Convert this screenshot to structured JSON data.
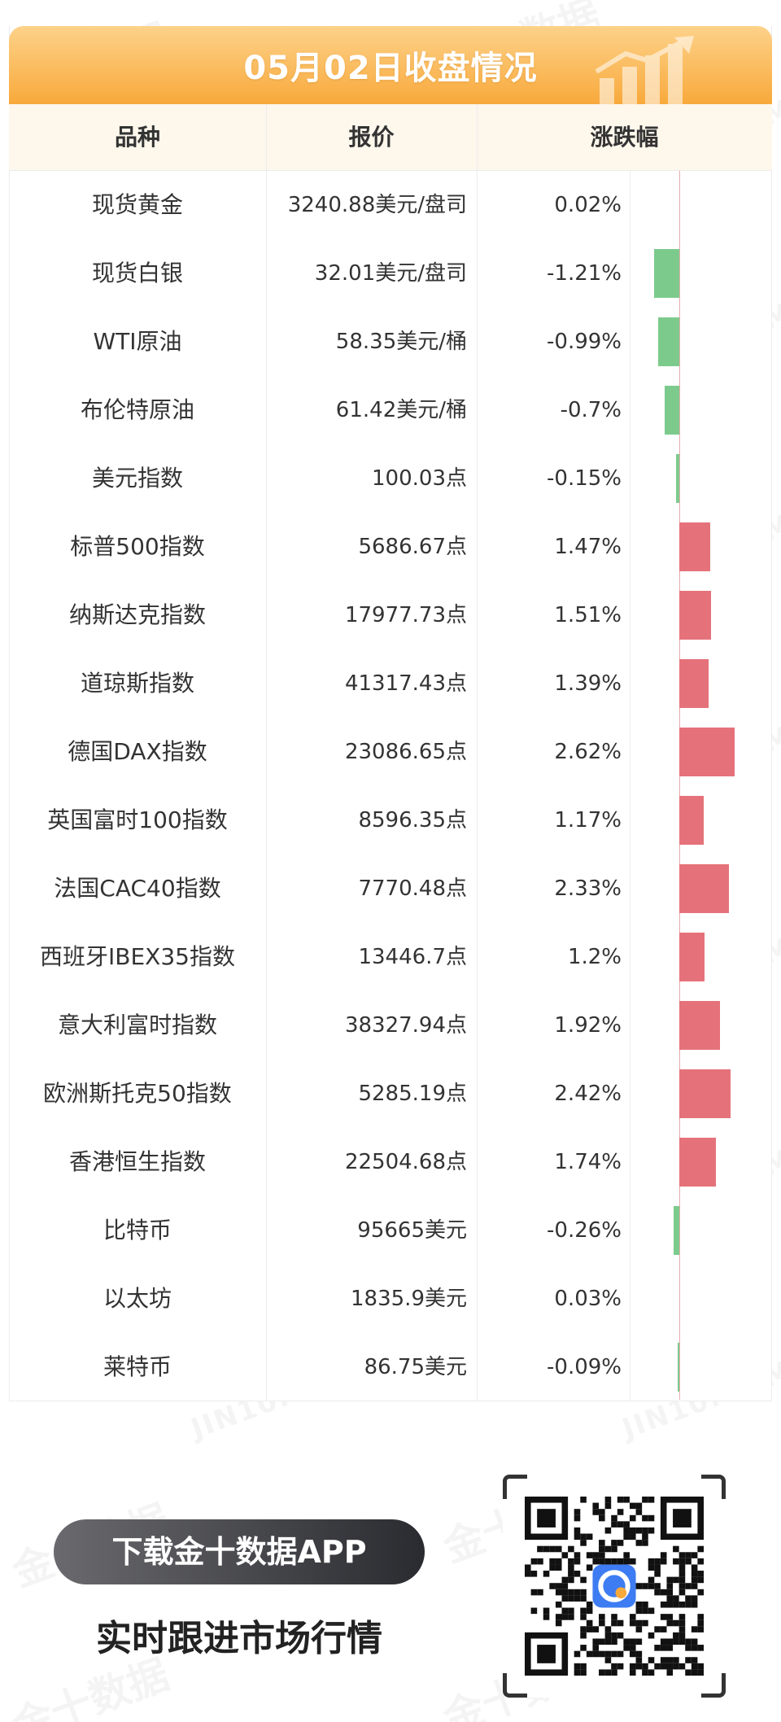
{
  "header": {
    "title": "05月02日收盘情况"
  },
  "table": {
    "columns": [
      "品种",
      "报价",
      "涨跌幅"
    ],
    "rows": [
      {
        "name": "现货黄金",
        "price": "3240.88美元/盘司",
        "change": "0.02%",
        "pct": 0.02
      },
      {
        "name": "现货白银",
        "price": "32.01美元/盘司",
        "change": "-1.21%",
        "pct": -1.21
      },
      {
        "name": "WTI原油",
        "price": "58.35美元/桶",
        "change": "-0.99%",
        "pct": -0.99
      },
      {
        "name": "布伦特原油",
        "price": "61.42美元/桶",
        "change": "-0.7%",
        "pct": -0.7
      },
      {
        "name": "美元指数",
        "price": "100.03点",
        "change": "-0.15%",
        "pct": -0.15
      },
      {
        "name": "标普500指数",
        "price": "5686.67点",
        "change": "1.47%",
        "pct": 1.47
      },
      {
        "name": "纳斯达克指数",
        "price": "17977.73点",
        "change": "1.51%",
        "pct": 1.51
      },
      {
        "name": "道琼斯指数",
        "price": "41317.43点",
        "change": "1.39%",
        "pct": 1.39
      },
      {
        "name": "德国DAX指数",
        "price": "23086.65点",
        "change": "2.62%",
        "pct": 2.62
      },
      {
        "name": "英国富时100指数",
        "price": "8596.35点",
        "change": "1.17%",
        "pct": 1.17
      },
      {
        "name": "法国CAC40指数",
        "price": "7770.48点",
        "change": "2.33%",
        "pct": 2.33
      },
      {
        "name": "西班牙IBEX35指数",
        "price": "13446.7点",
        "change": "1.2%",
        "pct": 1.2
      },
      {
        "name": "意大利富时指数",
        "price": "38327.94点",
        "change": "1.92%",
        "pct": 1.92
      },
      {
        "name": "欧洲斯托克50指数",
        "price": "5285.19点",
        "change": "2.42%",
        "pct": 2.42
      },
      {
        "name": "香港恒生指数",
        "price": "22504.68点",
        "change": "1.74%",
        "pct": 1.74
      },
      {
        "name": "比特币",
        "price": "95665美元",
        "change": "-0.26%",
        "pct": -0.26
      },
      {
        "name": "以太坊",
        "price": "1835.9美元",
        "change": "0.03%",
        "pct": 0.03
      },
      {
        "name": "莱特币",
        "price": "86.75美元",
        "change": "-0.09%",
        "pct": -0.09
      }
    ]
  },
  "footer": {
    "download_button": "下载金十数据APP",
    "tagline": "实时跟进市场行情"
  },
  "watermark": {
    "cn": "金十数据",
    "en": "JIN10.COM"
  },
  "colors": {
    "up": "#e5727a",
    "down": "#7ccb8d",
    "banner": "#f8a93b"
  },
  "icons": {
    "banner_decoration": "rising-bar-chart-icon",
    "qr": "qr-code-icon",
    "app_logo": "jin10-app-icon"
  }
}
